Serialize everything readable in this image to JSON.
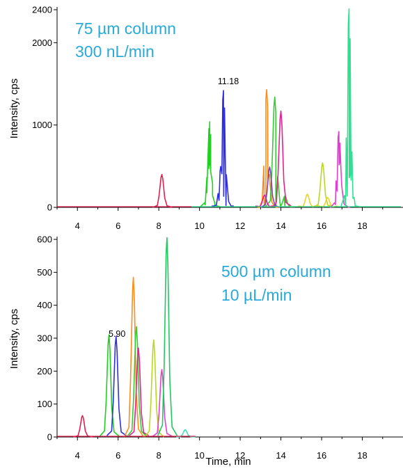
{
  "chart_data": [
    {
      "type": "line",
      "ylabel": "Intensity, cps",
      "xlim": [
        3,
        20
      ],
      "ylim": [
        0,
        2400
      ],
      "xticks": [
        "4",
        "6",
        "8",
        "10",
        "12",
        "14",
        "16",
        "18"
      ],
      "yticks": [
        "0",
        "1000",
        "2000",
        "2400"
      ],
      "annotations": {
        "line1": "75 µm column",
        "line2": "300 nL/min",
        "color": "#29a9d9"
      },
      "peak_label": {
        "text": "11.18",
        "x": 11.18,
        "y": 1420
      },
      "series": [
        {
          "color": "#e0204f",
          "peaks": [
            [
              8.15,
              400
            ]
          ]
        },
        {
          "color": "#20d020",
          "peaks": [
            [
              10.5,
              1040
            ],
            [
              10.5,
              510
            ]
          ]
        },
        {
          "color": "#2f2fe0",
          "peaks": [
            [
              11.18,
              1420
            ],
            [
              11.05,
              480
            ]
          ]
        },
        {
          "color": "#ff8c1a",
          "peaks": [
            [
              13.3,
              1430
            ],
            [
              13.4,
              380
            ]
          ]
        },
        {
          "color": "#33cc33",
          "peaks": [
            [
              13.7,
              1340
            ],
            [
              14.2,
              140
            ]
          ]
        },
        {
          "color": "#e6208c",
          "peaks": [
            [
              14.0,
              1170
            ],
            [
              13.2,
              150
            ]
          ]
        },
        {
          "color": "#7a3fbf",
          "peaks": [
            [
              13.45,
              490
            ]
          ]
        },
        {
          "color": "#b8d820",
          "peaks": [
            [
              16.05,
              540
            ]
          ]
        },
        {
          "color": "#f0d020",
          "peaks": [
            [
              15.3,
              160
            ],
            [
              16.3,
              120
            ]
          ]
        },
        {
          "color": "#e040d0",
          "peaks": [
            [
              16.85,
              920
            ],
            [
              16.9,
              560
            ]
          ]
        },
        {
          "color": "#30e090",
          "peaks": [
            [
              17.35,
              2410
            ],
            [
              17.4,
              390
            ]
          ]
        }
      ]
    },
    {
      "type": "line",
      "xlabel": "Time, min",
      "ylabel": "Intensity, cps",
      "xlim": [
        3,
        20
      ],
      "ylim": [
        0,
        600
      ],
      "xticks": [
        "4",
        "6",
        "8",
        "10",
        "12",
        "14",
        "16",
        "18"
      ],
      "yticks": [
        "0",
        "100",
        "200",
        "300",
        "400",
        "500",
        "600"
      ],
      "annotations": {
        "line1": "500 µm column",
        "line2": "10 µL/min",
        "color": "#29a9d9"
      },
      "peak_label": {
        "text": "5.90",
        "x": 5.9,
        "y": 305
      },
      "series": [
        {
          "color": "#e0204f",
          "peaks": [
            [
              4.25,
              65
            ]
          ]
        },
        {
          "color": "#20d020",
          "peaks": [
            [
              5.55,
              310
            ]
          ]
        },
        {
          "color": "#2f2fe0",
          "peaks": [
            [
              5.9,
              305
            ]
          ]
        },
        {
          "color": "#ff8c1a",
          "peaks": [
            [
              6.75,
              485
            ]
          ]
        },
        {
          "color": "#33cc33",
          "peaks": [
            [
              6.9,
              335
            ]
          ]
        },
        {
          "color": "#e6208c",
          "peaks": [
            [
              7.0,
              270
            ]
          ]
        },
        {
          "color": "#b8d820",
          "peaks": [
            [
              7.75,
              295
            ]
          ]
        },
        {
          "color": "#e040d0",
          "peaks": [
            [
              8.15,
              205
            ]
          ]
        },
        {
          "color": "#20c860",
          "peaks": [
            [
              8.4,
              605
            ]
          ]
        },
        {
          "color": "#40e0c0",
          "peaks": [
            [
              9.3,
              22
            ]
          ]
        }
      ]
    }
  ]
}
